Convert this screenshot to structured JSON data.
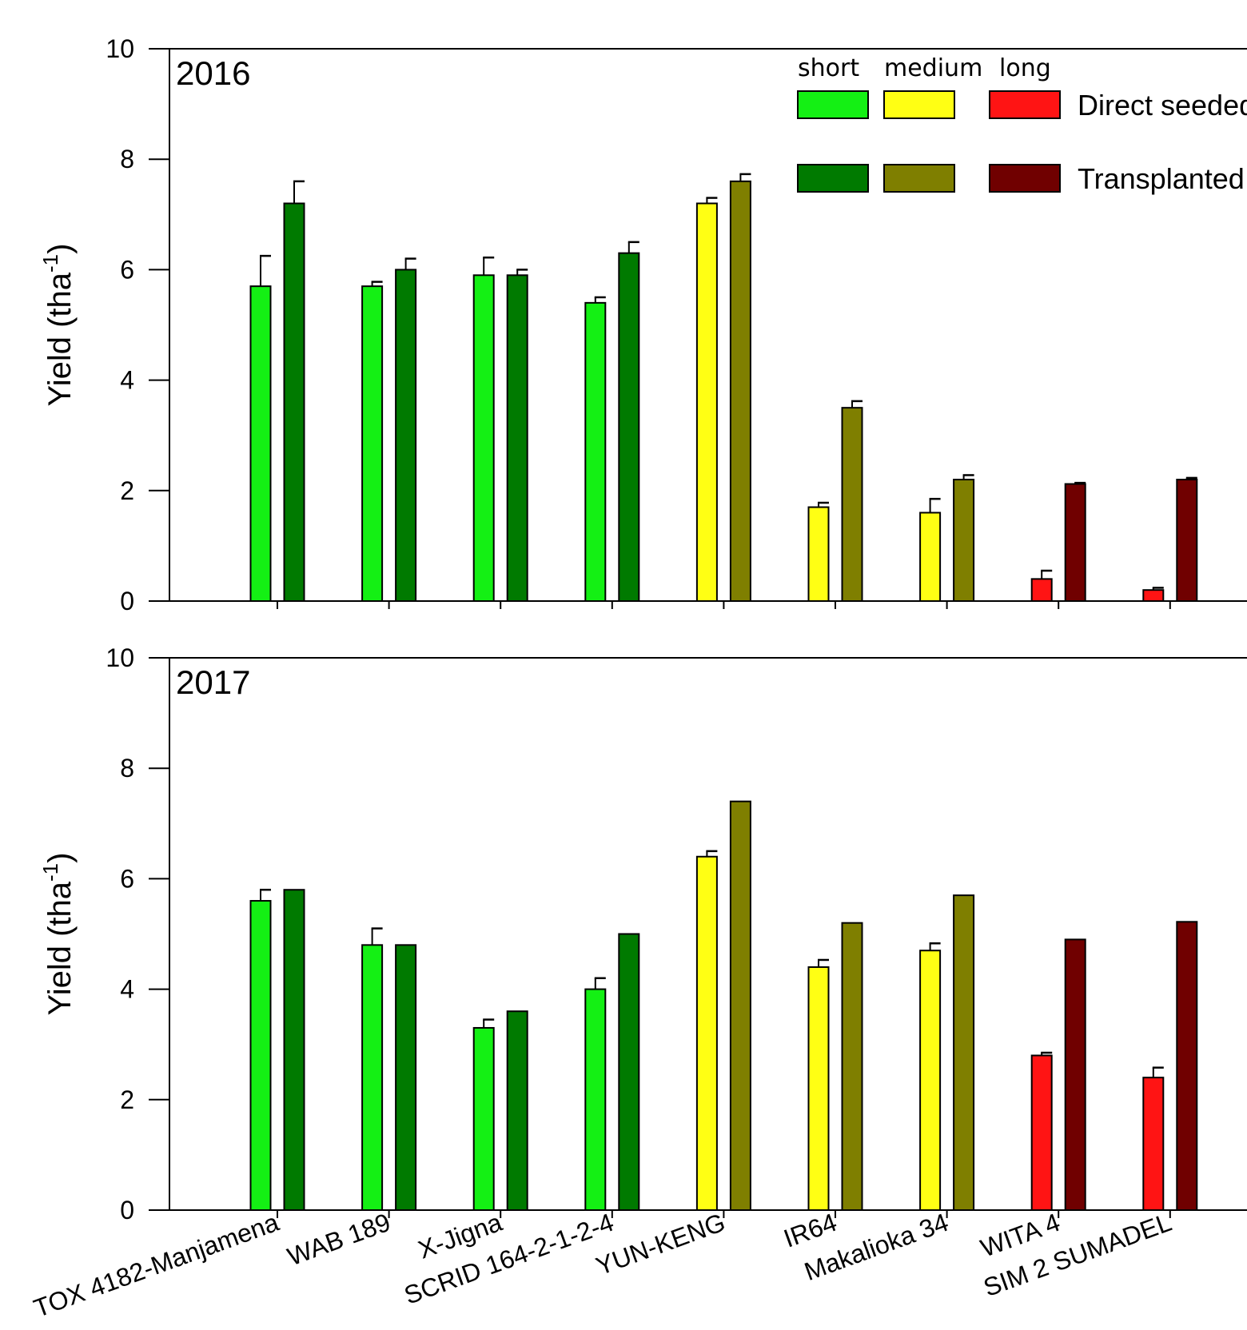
{
  "chart_data": [
    {
      "type": "bar",
      "panel_label": "2016",
      "ylabel": "Yield (tha",
      "ylabel_sup": "-1",
      "ylabel_close": ")",
      "ylim": [
        0,
        10
      ],
      "yticks": [
        0,
        2,
        4,
        6,
        8,
        10
      ],
      "categories": [
        "TOX 4182-Manjamena",
        "WAB 189",
        "X-Jigna",
        "SCRID 164-2-1-2-4",
        "YUN-KENG",
        "IR64",
        "Makalioka 34",
        "WITA 4",
        "SIM 2 SUMADEL"
      ],
      "cycle": [
        "short",
        "short",
        "short",
        "short",
        "medium",
        "medium",
        "medium",
        "long",
        "long"
      ],
      "series": [
        {
          "name": "Direct seeded",
          "values": [
            5.7,
            5.7,
            5.9,
            5.4,
            7.2,
            1.7,
            1.6,
            0.4,
            0.2
          ],
          "errors": [
            0.55,
            0.08,
            0.32,
            0.1,
            0.1,
            0.08,
            0.25,
            0.15,
            0.04
          ]
        },
        {
          "name": "Transplanted",
          "values": [
            7.2,
            6.0,
            5.9,
            6.3,
            7.6,
            3.5,
            2.2,
            2.12,
            2.2
          ],
          "errors": [
            0.4,
            0.2,
            0.1,
            0.2,
            0.13,
            0.12,
            0.08,
            0.02,
            0.03
          ]
        }
      ]
    },
    {
      "type": "bar",
      "panel_label": "2017",
      "ylabel": "Yield (tha",
      "ylabel_sup": "-1",
      "ylabel_close": ")",
      "ylim": [
        0,
        10
      ],
      "yticks": [
        0,
        2,
        4,
        6,
        8,
        10
      ],
      "categories": [
        "TOX 4182-Manjamena",
        "WAB 189",
        "X-Jigna",
        "SCRID 164-2-1-2-4",
        "YUN-KENG",
        "IR64",
        "Makalioka 34",
        "WITA 4",
        "SIM 2 SUMADEL"
      ],
      "cycle": [
        "short",
        "short",
        "short",
        "short",
        "medium",
        "medium",
        "medium",
        "long",
        "long"
      ],
      "series": [
        {
          "name": "Direct seeded",
          "values": [
            5.6,
            4.8,
            3.3,
            4.0,
            6.4,
            4.4,
            4.7,
            2.8,
            2.4
          ],
          "errors": [
            0.2,
            0.3,
            0.15,
            0.2,
            0.1,
            0.13,
            0.13,
            0.05,
            0.18
          ]
        },
        {
          "name": "Transplanted",
          "values": [
            5.8,
            4.8,
            3.6,
            5.0,
            7.4,
            5.2,
            5.7,
            4.9,
            5.22
          ]
        }
      ]
    }
  ],
  "legend": {
    "headers": [
      "short",
      "medium",
      "long"
    ],
    "rows": [
      "Direct seeded",
      "Transplanted"
    ]
  },
  "colors": {
    "short_direct": "#14f014",
    "short_transplanted": "#007a00",
    "medium_direct": "#ffff14",
    "medium_transplanted": "#7f7f00",
    "long_direct": "#ff1414",
    "long_transplanted": "#700000",
    "axis": "#000000"
  }
}
